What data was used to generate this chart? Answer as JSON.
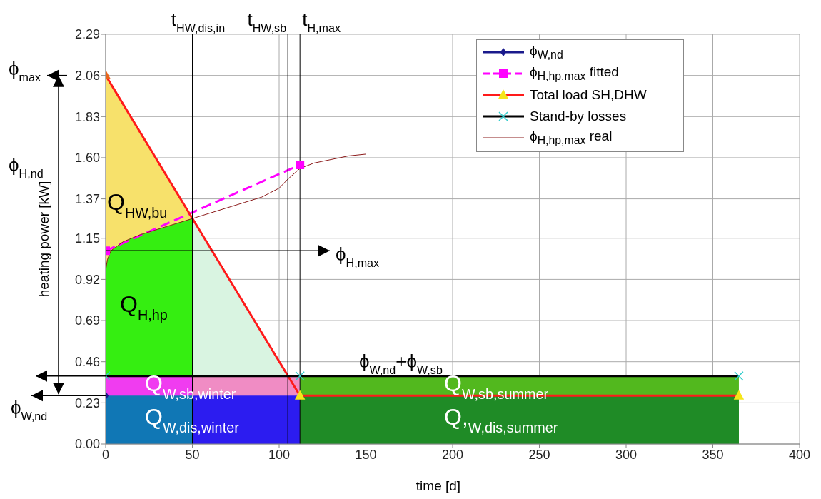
{
  "chart_data": {
    "type": "line",
    "xlabel": "time [d]",
    "ylabel": "heating power [kW]",
    "xlim": [
      0,
      400
    ],
    "xticks": [
      0,
      50,
      100,
      150,
      200,
      250,
      300,
      350,
      400
    ],
    "ylim": [
      0,
      2.29
    ],
    "yticks": [
      {
        "value": 0,
        "label": "0.00"
      },
      0.23,
      0.46,
      0.69,
      0.92,
      1.15,
      1.37,
      {
        "value": 1.6,
        "label": "1.60"
      },
      1.83,
      2.06,
      2.29
    ],
    "grid": true,
    "legend": "top right",
    "series": [
      {
        "type": "area",
        "color": "#f7e16b",
        "x": [
          0,
          1,
          3,
          10,
          20,
          30,
          40,
          50
        ],
        "values": [
          2.06,
          2.04,
          2.01,
          1.9,
          1.74,
          1.58,
          1.42,
          1.26
        ]
      },
      {
        "type": "area",
        "color": "#d9f4e1",
        "x": [
          50,
          105
        ],
        "values": [
          1.26,
          0.38
        ]
      },
      {
        "type": "area",
        "color": "#35ee11",
        "x": [
          0,
          1,
          3,
          10,
          20,
          30,
          40,
          50
        ],
        "values": [
          0.97,
          1.03,
          1.08,
          1.13,
          1.17,
          1.2,
          1.23,
          1.26
        ]
      },
      {
        "type": "area",
        "color": "#f03cf0",
        "x": [
          0,
          50
        ],
        "values": [
          0.38,
          0.38
        ]
      },
      {
        "type": "area",
        "color": "#f08cc4",
        "x": [
          50,
          112
        ],
        "values": [
          0.38,
          0.38
        ]
      },
      {
        "type": "area",
        "color": "#52b81e",
        "x": [
          112,
          365
        ],
        "values": [
          0.38,
          0.38
        ]
      },
      {
        "type": "area",
        "color": "#1077b5",
        "x": [
          0,
          50
        ],
        "values": [
          0.27,
          0.27
        ]
      },
      {
        "type": "area",
        "color": "#2c1cf0",
        "x": [
          50,
          112
        ],
        "values": [
          0.27,
          0.27
        ]
      },
      {
        "type": "area",
        "color": "#1f8b26",
        "x": [
          112,
          365
        ],
        "values": [
          0.27,
          0.27
        ]
      },
      {
        "name": "ϕ$_{W,nd}$",
        "color": "#1a1a8c",
        "marker": "diamond",
        "line_style": "solid",
        "x": [
          0
        ],
        "values": [
          0.27
        ]
      },
      {
        "name": "ϕ$_{H,hp,max}$ fitted",
        "color": "#ff00ff",
        "marker": "square",
        "line_style": "dashed",
        "x": [
          0,
          112
        ],
        "values": [
          1.08,
          1.56
        ]
      },
      {
        "name": "Total load SH,DHW",
        "color": "#ff1a1a",
        "marker": "triangle",
        "line_style": "solid",
        "x": [
          0,
          112,
          365
        ],
        "values": [
          2.06,
          0.27,
          0.27
        ],
        "colors": [
          "#e8641a",
          "#f5e61a",
          "#f5e61a"
        ]
      },
      {
        "name": "Stand-by losses",
        "color": "#000000",
        "marker": "cross",
        "line_style": "solid",
        "x": [
          0,
          112,
          365
        ],
        "values": [
          0.38,
          0.38,
          0.38
        ],
        "colors": [
          "#33cccc",
          "#33cccc",
          "#33cccc"
        ]
      },
      {
        "name": "ϕ$_{H,hp,max}$ real",
        "color": "#8b1a1a",
        "marker": "none",
        "line_style": "solid",
        "x": [
          0,
          1,
          3,
          10,
          20,
          30,
          40,
          50,
          60,
          70,
          80,
          90,
          100,
          105,
          112,
          120,
          130,
          140,
          150
        ],
        "values": [
          0.97,
          1.03,
          1.08,
          1.13,
          1.17,
          1.2,
          1.23,
          1.26,
          1.29,
          1.32,
          1.35,
          1.38,
          1.43,
          1.48,
          1.54,
          1.57,
          1.59,
          1.61,
          1.62
        ]
      }
    ],
    "ref_lines": [
      {
        "axis": "x",
        "value": 50,
        "label": "t$_{HW,dis,in}$",
        "color": "#000000"
      },
      {
        "axis": "x",
        "value": 105,
        "label": "t$_{HW,sb}$",
        "color": "#000000"
      },
      {
        "axis": "x",
        "value": 112,
        "label": "t$_{H,max}$",
        "color": "#000000"
      }
    ],
    "annotations": [
      "ϕ$_{max}$",
      "ϕ$_{H,nd}$",
      "ϕ$_{W,nd}$",
      "Q$_{HW,bu}$",
      "Q$_{H,hp}$",
      {
        "text": "ϕ$_{H,max}$",
        "x": 0,
        "y": 1.08
      },
      "ϕ$_{W,nd}$+ϕ$_{W,sb}$",
      "Q$_{W,sb,winter}$",
      "Q$_{W,dis,winter}$",
      "Q$_{W,sb,summer}$",
      "Q,$_{W,dis,summer}$"
    ]
  }
}
